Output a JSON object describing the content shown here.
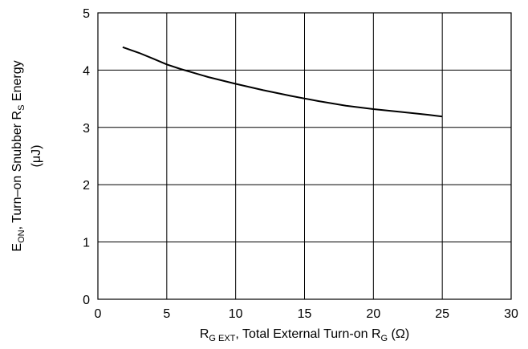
{
  "chart_data": {
    "type": "line",
    "x_ticks": [
      "0",
      "5",
      "10",
      "15",
      "20",
      "25",
      "30"
    ],
    "y_ticks": [
      "0",
      "1",
      "2",
      "3",
      "4",
      "5"
    ],
    "xlim": [
      0,
      30
    ],
    "ylim": [
      0,
      5
    ],
    "grid": true,
    "xlabel": {
      "p1": "R",
      "s1": "G EXT",
      "p2": ", Total External Turn-on R",
      "s2": "G",
      "p3": " (Ω)"
    },
    "ylabel": {
      "line1_p1": "E",
      "line1_s1": "ON",
      "line1_p2": ", Turn–on Snubber R",
      "line1_s2": "S",
      "line1_p3": " Energy",
      "line2": "(μJ)"
    },
    "series": [
      {
        "x": [
          1.8,
          3,
          4,
          5,
          6,
          8,
          10,
          12,
          14,
          16,
          18,
          20,
          22,
          24,
          25
        ],
        "y": [
          4.4,
          4.3,
          4.2,
          4.1,
          4.02,
          3.88,
          3.76,
          3.65,
          3.55,
          3.46,
          3.38,
          3.32,
          3.27,
          3.22,
          3.19
        ],
        "color": "#000000"
      }
    ]
  }
}
